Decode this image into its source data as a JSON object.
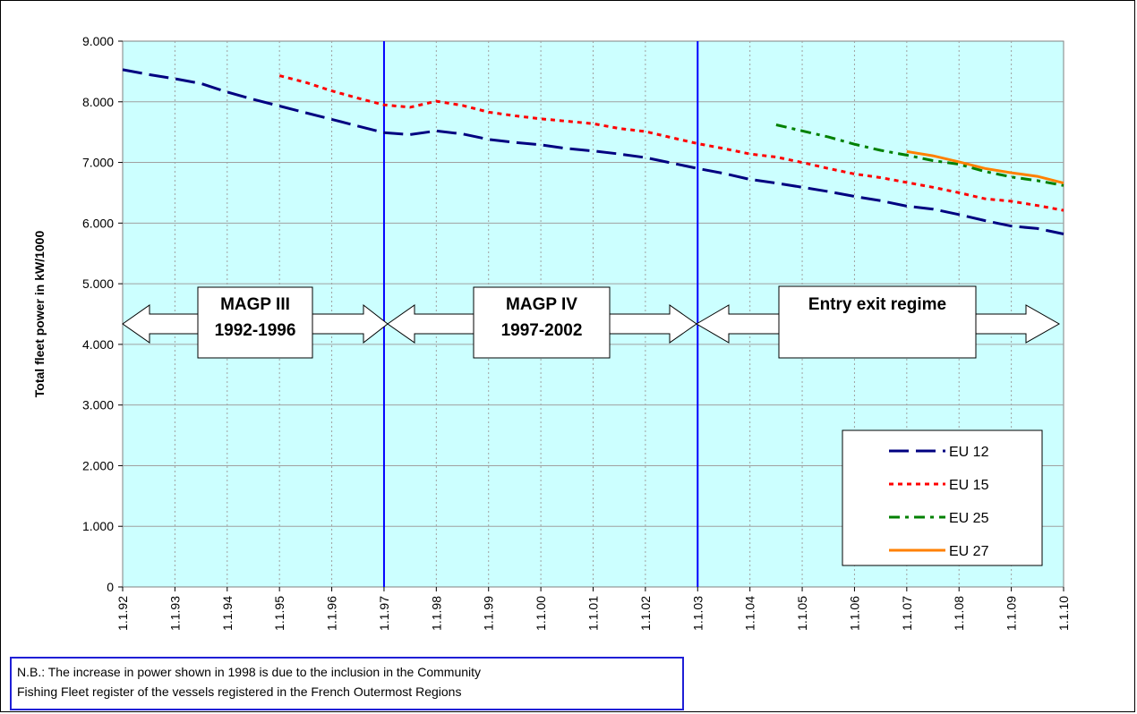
{
  "chart_data": {
    "type": "line",
    "title": "",
    "xlabel": "",
    "ylabel": "Total fleet power in kW/1000",
    "ylim": [
      0,
      9000
    ],
    "yticks": [
      0,
      1000,
      2000,
      3000,
      4000,
      5000,
      6000,
      7000,
      8000,
      9000
    ],
    "ytick_labels": [
      "0",
      "1.000",
      "2.000",
      "3.000",
      "4.000",
      "5.000",
      "6.000",
      "7.000",
      "8.000",
      "9.000"
    ],
    "x_categories": [
      "1.1.92",
      "1.1.93",
      "1.1.94",
      "1.1.95",
      "1.1.96",
      "1.1.97",
      "1.1.98",
      "1.1.99",
      "1.1.00",
      "1.1.01",
      "1.1.02",
      "1.1.03",
      "1.1.04",
      "1.1.05",
      "1.1.06",
      "1.1.07",
      "1.1.08",
      "1.1.09",
      "1.1.10"
    ],
    "xlim": [
      0,
      18
    ],
    "grid": true,
    "background": "#ccffff",
    "legend_position": "bottom-right",
    "series": [
      {
        "name": "EU 12",
        "color": "#000080",
        "dash": "long-dash",
        "points": [
          [
            0,
            8530
          ],
          [
            0.5,
            8450
          ],
          [
            1,
            8380
          ],
          [
            1.5,
            8300
          ],
          [
            2,
            8160
          ],
          [
            2.5,
            8040
          ],
          [
            3,
            7930
          ],
          [
            3.5,
            7820
          ],
          [
            4,
            7710
          ],
          [
            4.5,
            7600
          ],
          [
            5,
            7490
          ],
          [
            5.5,
            7460
          ],
          [
            6,
            7520
          ],
          [
            6.5,
            7470
          ],
          [
            7,
            7380
          ],
          [
            7.5,
            7330
          ],
          [
            8,
            7290
          ],
          [
            8.5,
            7230
          ],
          [
            9,
            7190
          ],
          [
            9.5,
            7140
          ],
          [
            10,
            7080
          ],
          [
            10.5,
            6990
          ],
          [
            11,
            6900
          ],
          [
            11.5,
            6820
          ],
          [
            12,
            6720
          ],
          [
            12.5,
            6660
          ],
          [
            13,
            6590
          ],
          [
            13.5,
            6520
          ],
          [
            14,
            6440
          ],
          [
            14.5,
            6370
          ],
          [
            15,
            6280
          ],
          [
            15.5,
            6230
          ],
          [
            16,
            6140
          ],
          [
            16.5,
            6040
          ],
          [
            17,
            5950
          ],
          [
            17.5,
            5910
          ],
          [
            18,
            5820
          ]
        ]
      },
      {
        "name": "EU 15",
        "color": "#ff0000",
        "dash": "dotted",
        "points": [
          [
            3,
            8430
          ],
          [
            3.5,
            8320
          ],
          [
            4,
            8180
          ],
          [
            4.5,
            8060
          ],
          [
            5,
            7950
          ],
          [
            5.5,
            7910
          ],
          [
            6,
            8010
          ],
          [
            6.5,
            7940
          ],
          [
            7,
            7830
          ],
          [
            7.5,
            7770
          ],
          [
            8,
            7720
          ],
          [
            8.5,
            7680
          ],
          [
            9,
            7640
          ],
          [
            9.5,
            7560
          ],
          [
            10,
            7510
          ],
          [
            10.5,
            7410
          ],
          [
            11,
            7310
          ],
          [
            11.5,
            7230
          ],
          [
            12,
            7140
          ],
          [
            12.5,
            7090
          ],
          [
            13,
            7000
          ],
          [
            13.5,
            6900
          ],
          [
            14,
            6810
          ],
          [
            14.5,
            6750
          ],
          [
            15,
            6670
          ],
          [
            15.5,
            6590
          ],
          [
            16,
            6500
          ],
          [
            16.5,
            6400
          ],
          [
            17,
            6360
          ],
          [
            17.5,
            6290
          ],
          [
            18,
            6210
          ]
        ]
      },
      {
        "name": "EU 25",
        "color": "#008000",
        "dash": "dash-dot",
        "points": [
          [
            12.5,
            7620
          ],
          [
            13,
            7520
          ],
          [
            13.5,
            7420
          ],
          [
            14,
            7300
          ],
          [
            14.5,
            7200
          ],
          [
            15,
            7120
          ],
          [
            15.5,
            7030
          ],
          [
            16,
            6970
          ],
          [
            16.5,
            6850
          ],
          [
            17,
            6760
          ],
          [
            17.5,
            6700
          ],
          [
            18,
            6620
          ]
        ]
      },
      {
        "name": "EU 27",
        "color": "#ff8000",
        "dash": "solid",
        "points": [
          [
            15,
            7180
          ],
          [
            15.5,
            7110
          ],
          [
            16,
            7010
          ],
          [
            16.5,
            6900
          ],
          [
            17,
            6830
          ],
          [
            17.5,
            6770
          ],
          [
            18,
            6660
          ]
        ]
      }
    ],
    "vertical_lines": [
      5,
      11
    ],
    "annotations": [
      {
        "id": "magp3",
        "lines": [
          "MAGP III",
          "1992-1996"
        ]
      },
      {
        "id": "magp4",
        "lines": [
          "MAGP IV",
          "1997-2002"
        ]
      },
      {
        "id": "entry",
        "lines": [
          "Entry exit regime"
        ]
      }
    ]
  },
  "note": {
    "line1": "N.B.: The increase in power shown in 1998 is due to the inclusion in the Community",
    "line2": "Fishing Fleet register of the vessels registered in the French Outermost Regions"
  }
}
